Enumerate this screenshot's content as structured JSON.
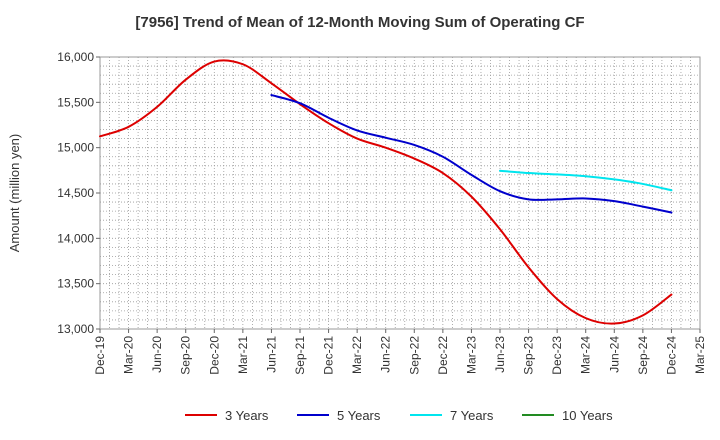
{
  "chart_data": {
    "type": "line",
    "title": "[7956]  Trend of Mean of 12-Month Moving Sum of Operating CF",
    "xlabel": "",
    "ylabel": "Amount (million yen)",
    "ylim": [
      13000,
      16000
    ],
    "yticks": [
      13000,
      13500,
      14000,
      14500,
      15000,
      15500,
      16000
    ],
    "ytick_labels": [
      "13,000",
      "13,500",
      "14,000",
      "14,500",
      "15,000",
      "15,500",
      "16,000"
    ],
    "categories": [
      "Dec-19",
      "Mar-20",
      "Jun-20",
      "Sep-20",
      "Dec-20",
      "Mar-21",
      "Jun-21",
      "Sep-21",
      "Dec-21",
      "Mar-22",
      "Jun-22",
      "Sep-22",
      "Dec-22",
      "Mar-23",
      "Jun-23",
      "Sep-23",
      "Dec-23",
      "Mar-24",
      "Jun-24",
      "Sep-24",
      "Dec-24",
      "Mar-25"
    ],
    "grid": true,
    "legend_position": "bottom",
    "series": [
      {
        "name": "3 Years",
        "color": "#dd0000",
        "values": [
          15125,
          15230,
          15450,
          15750,
          15950,
          15920,
          15710,
          15480,
          15270,
          15100,
          15000,
          14880,
          14720,
          14460,
          14100,
          13680,
          13330,
          13120,
          13060,
          13150,
          13380,
          null
        ]
      },
      {
        "name": "5 Years",
        "color": "#0000cc",
        "values": [
          null,
          null,
          null,
          null,
          null,
          null,
          15580,
          15490,
          15330,
          15190,
          15110,
          15030,
          14900,
          14700,
          14520,
          14430,
          14430,
          14440,
          14410,
          14350,
          14285,
          null
        ]
      },
      {
        "name": "7 Years",
        "color": "#00e5ee",
        "values": [
          null,
          null,
          null,
          null,
          null,
          null,
          null,
          null,
          null,
          null,
          null,
          null,
          null,
          null,
          14745,
          14720,
          14705,
          14685,
          14650,
          14600,
          14530,
          null
        ]
      },
      {
        "name": "10 Years",
        "color": "#228b22",
        "values": [
          null,
          null,
          null,
          null,
          null,
          null,
          null,
          null,
          null,
          null,
          null,
          null,
          null,
          null,
          null,
          null,
          null,
          null,
          null,
          null,
          null,
          null
        ]
      }
    ]
  }
}
